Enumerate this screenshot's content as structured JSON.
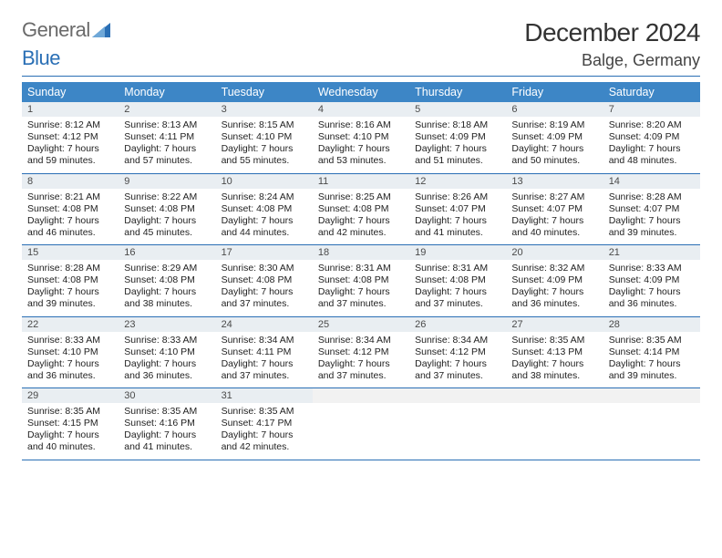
{
  "brand": {
    "part1": "General",
    "part2": "Blue",
    "text_color": "#6a6a6a",
    "accent_color": "#2a6fb5"
  },
  "title": "December 2024",
  "location": "Balge, Germany",
  "weekday_headers": [
    "Sunday",
    "Monday",
    "Tuesday",
    "Wednesday",
    "Thursday",
    "Friday",
    "Saturday"
  ],
  "colors": {
    "header_bg": "#3d86c6",
    "header_fg": "#ffffff",
    "daynum_bg": "#e9eef2",
    "rule": "#2a6fb5",
    "page_bg": "#ffffff",
    "body_text": "#222222"
  },
  "font": {
    "family": "Arial",
    "title_size_pt": 21,
    "location_size_pt": 13,
    "header_size_pt": 9,
    "body_size_pt": 8
  },
  "grid": {
    "cols": 7,
    "rows": 5
  },
  "days": [
    {
      "n": 1,
      "sunrise": "8:12 AM",
      "sunset": "4:12 PM",
      "daylight": "7 hours and 59 minutes."
    },
    {
      "n": 2,
      "sunrise": "8:13 AM",
      "sunset": "4:11 PM",
      "daylight": "7 hours and 57 minutes."
    },
    {
      "n": 3,
      "sunrise": "8:15 AM",
      "sunset": "4:10 PM",
      "daylight": "7 hours and 55 minutes."
    },
    {
      "n": 4,
      "sunrise": "8:16 AM",
      "sunset": "4:10 PM",
      "daylight": "7 hours and 53 minutes."
    },
    {
      "n": 5,
      "sunrise": "8:18 AM",
      "sunset": "4:09 PM",
      "daylight": "7 hours and 51 minutes."
    },
    {
      "n": 6,
      "sunrise": "8:19 AM",
      "sunset": "4:09 PM",
      "daylight": "7 hours and 50 minutes."
    },
    {
      "n": 7,
      "sunrise": "8:20 AM",
      "sunset": "4:09 PM",
      "daylight": "7 hours and 48 minutes."
    },
    {
      "n": 8,
      "sunrise": "8:21 AM",
      "sunset": "4:08 PM",
      "daylight": "7 hours and 46 minutes."
    },
    {
      "n": 9,
      "sunrise": "8:22 AM",
      "sunset": "4:08 PM",
      "daylight": "7 hours and 45 minutes."
    },
    {
      "n": 10,
      "sunrise": "8:24 AM",
      "sunset": "4:08 PM",
      "daylight": "7 hours and 44 minutes."
    },
    {
      "n": 11,
      "sunrise": "8:25 AM",
      "sunset": "4:08 PM",
      "daylight": "7 hours and 42 minutes."
    },
    {
      "n": 12,
      "sunrise": "8:26 AM",
      "sunset": "4:07 PM",
      "daylight": "7 hours and 41 minutes."
    },
    {
      "n": 13,
      "sunrise": "8:27 AM",
      "sunset": "4:07 PM",
      "daylight": "7 hours and 40 minutes."
    },
    {
      "n": 14,
      "sunrise": "8:28 AM",
      "sunset": "4:07 PM",
      "daylight": "7 hours and 39 minutes."
    },
    {
      "n": 15,
      "sunrise": "8:28 AM",
      "sunset": "4:08 PM",
      "daylight": "7 hours and 39 minutes."
    },
    {
      "n": 16,
      "sunrise": "8:29 AM",
      "sunset": "4:08 PM",
      "daylight": "7 hours and 38 minutes."
    },
    {
      "n": 17,
      "sunrise": "8:30 AM",
      "sunset": "4:08 PM",
      "daylight": "7 hours and 37 minutes."
    },
    {
      "n": 18,
      "sunrise": "8:31 AM",
      "sunset": "4:08 PM",
      "daylight": "7 hours and 37 minutes."
    },
    {
      "n": 19,
      "sunrise": "8:31 AM",
      "sunset": "4:08 PM",
      "daylight": "7 hours and 37 minutes."
    },
    {
      "n": 20,
      "sunrise": "8:32 AM",
      "sunset": "4:09 PM",
      "daylight": "7 hours and 36 minutes."
    },
    {
      "n": 21,
      "sunrise": "8:33 AM",
      "sunset": "4:09 PM",
      "daylight": "7 hours and 36 minutes."
    },
    {
      "n": 22,
      "sunrise": "8:33 AM",
      "sunset": "4:10 PM",
      "daylight": "7 hours and 36 minutes."
    },
    {
      "n": 23,
      "sunrise": "8:33 AM",
      "sunset": "4:10 PM",
      "daylight": "7 hours and 36 minutes."
    },
    {
      "n": 24,
      "sunrise": "8:34 AM",
      "sunset": "4:11 PM",
      "daylight": "7 hours and 37 minutes."
    },
    {
      "n": 25,
      "sunrise": "8:34 AM",
      "sunset": "4:12 PM",
      "daylight": "7 hours and 37 minutes."
    },
    {
      "n": 26,
      "sunrise": "8:34 AM",
      "sunset": "4:12 PM",
      "daylight": "7 hours and 37 minutes."
    },
    {
      "n": 27,
      "sunrise": "8:35 AM",
      "sunset": "4:13 PM",
      "daylight": "7 hours and 38 minutes."
    },
    {
      "n": 28,
      "sunrise": "8:35 AM",
      "sunset": "4:14 PM",
      "daylight": "7 hours and 39 minutes."
    },
    {
      "n": 29,
      "sunrise": "8:35 AM",
      "sunset": "4:15 PM",
      "daylight": "7 hours and 40 minutes."
    },
    {
      "n": 30,
      "sunrise": "8:35 AM",
      "sunset": "4:16 PM",
      "daylight": "7 hours and 41 minutes."
    },
    {
      "n": 31,
      "sunrise": "8:35 AM",
      "sunset": "4:17 PM",
      "daylight": "7 hours and 42 minutes."
    }
  ],
  "labels": {
    "sunrise": "Sunrise:",
    "sunset": "Sunset:",
    "daylight": "Daylight:"
  },
  "first_weekday_index": 0,
  "trailing_empty": 4
}
